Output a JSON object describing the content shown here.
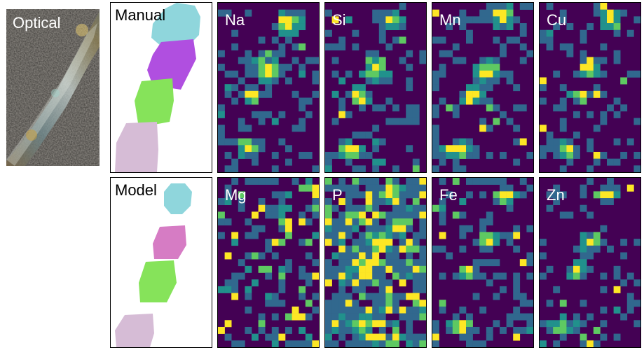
{
  "optical": {
    "label": "Optical"
  },
  "segmentations": [
    {
      "id": "manual",
      "label": "Manual"
    },
    {
      "id": "model",
      "label": "Model"
    }
  ],
  "element_maps": [
    {
      "id": "na",
      "label": "Na"
    },
    {
      "id": "si",
      "label": "Si"
    },
    {
      "id": "mn",
      "label": "Mn"
    },
    {
      "id": "cu",
      "label": "Cu"
    },
    {
      "id": "mg",
      "label": "Mg"
    },
    {
      "id": "p",
      "label": "P"
    },
    {
      "id": "fe",
      "label": "Fe"
    },
    {
      "id": "zn",
      "label": "Zn"
    }
  ],
  "colors": {
    "viridis_dark": "#440154",
    "viridis_blue": "#31688e",
    "viridis_teal": "#21918c",
    "viridis_green": "#5ec962",
    "viridis_yellow": "#fde725",
    "segment_cyan": "#8fd6dc",
    "segment_purple": "#b04fe0",
    "segment_magenta": "#d67cc4",
    "segment_green": "#86e35a",
    "segment_pink": "#d6bcd6"
  }
}
